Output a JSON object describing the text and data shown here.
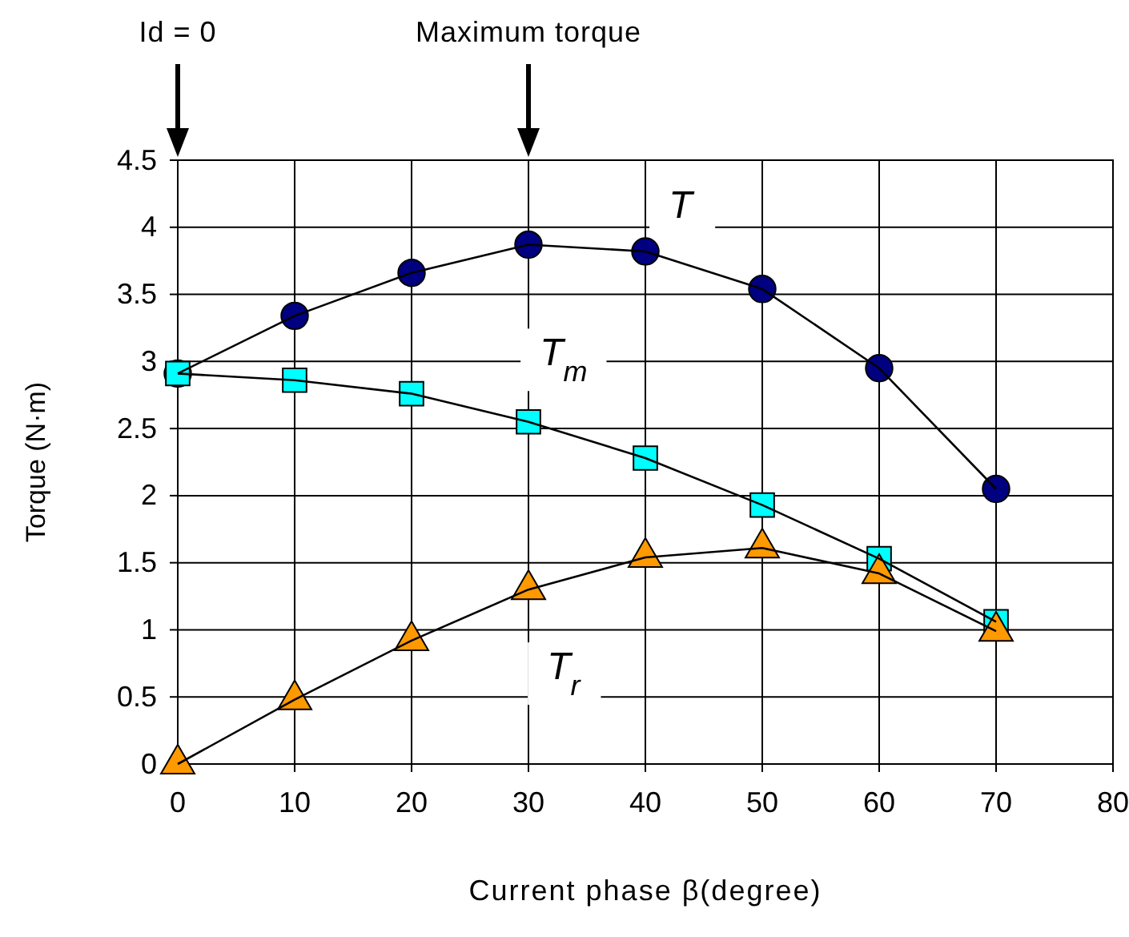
{
  "chart_data": {
    "type": "line",
    "xlabel": "Current phase β(degree)",
    "ylabel": "Torque (N·m)",
    "x": [
      0,
      10,
      20,
      30,
      40,
      50,
      60,
      70
    ],
    "series": [
      {
        "name": "T",
        "color": "#000080",
        "marker": "circle",
        "values": [
          2.91,
          3.34,
          3.66,
          3.87,
          3.82,
          3.54,
          2.95,
          2.05
        ]
      },
      {
        "name": "T$_{m}$",
        "color": "#00ffff",
        "marker": "square",
        "values": [
          2.91,
          2.86,
          2.76,
          2.55,
          2.28,
          1.93,
          1.53,
          1.06
        ]
      },
      {
        "name": "T$_{r}$",
        "color": "#ff9900",
        "marker": "triangle",
        "values": [
          0,
          0.48,
          0.92,
          1.3,
          1.54,
          1.61,
          1.42,
          0.99
        ]
      }
    ],
    "xlim": [
      0,
      80
    ],
    "xticks": [
      0,
      10,
      20,
      30,
      40,
      50,
      60,
      70,
      80
    ],
    "ylim": [
      0,
      4.5
    ],
    "yticks": [
      0,
      0.5,
      1,
      1.5,
      2,
      2.5,
      3,
      3.5,
      4,
      4.5
    ],
    "grid": true,
    "annotations": [
      "Id = 0",
      "Maximum torque"
    ]
  }
}
